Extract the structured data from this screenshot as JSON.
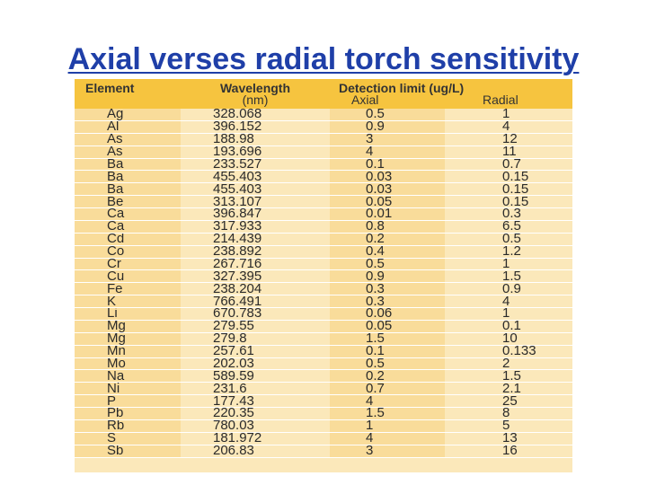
{
  "title": "Axial verses radial torch sensitivity",
  "table": {
    "headers": {
      "element": "Element",
      "wavelength": "Wavelength",
      "wavelength_unit": "(nm)",
      "detection_limit": "Detection limit (ug/L)",
      "axial": "Axial",
      "radial": "Radial"
    },
    "rows": [
      {
        "element": "Ag",
        "wavelength": "328.068",
        "axial": "0.5",
        "radial": "1"
      },
      {
        "element": "Al",
        "wavelength": "396.152",
        "axial": "0.9",
        "radial": "4"
      },
      {
        "element": "As",
        "wavelength": "188.98",
        "axial": "3",
        "radial": "12"
      },
      {
        "element": "As",
        "wavelength": "193.696",
        "axial": "4",
        "radial": "11"
      },
      {
        "element": "Ba",
        "wavelength": "233.527",
        "axial": "0.1",
        "radial": "0.7"
      },
      {
        "element": "Ba",
        "wavelength": "455.403",
        "axial": "0.03",
        "radial": "0.15"
      },
      {
        "element": "Ba",
        "wavelength": "455.403",
        "axial": "0.03",
        "radial": "0.15"
      },
      {
        "element": "Be",
        "wavelength": "313.107",
        "axial": "0.05",
        "radial": "0.15"
      },
      {
        "element": "Ca",
        "wavelength": "396.847",
        "axial": "0.01",
        "radial": "0.3"
      },
      {
        "element": "Ca",
        "wavelength": "317.933",
        "axial": "0.8",
        "radial": "6.5"
      },
      {
        "element": "Cd",
        "wavelength": "214.439",
        "axial": "0.2",
        "radial": "0.5"
      },
      {
        "element": "Co",
        "wavelength": "238.892",
        "axial": "0.4",
        "radial": "1.2"
      },
      {
        "element": "Cr",
        "wavelength": "267.716",
        "axial": "0.5",
        "radial": "1"
      },
      {
        "element": "Cu",
        "wavelength": "327.395",
        "axial": "0.9",
        "radial": "1.5"
      },
      {
        "element": "Fe",
        "wavelength": "238.204",
        "axial": "0.3",
        "radial": "0.9"
      },
      {
        "element": "K",
        "wavelength": "766.491",
        "axial": "0.3",
        "radial": "4"
      },
      {
        "element": "Li",
        "wavelength": "670.783",
        "axial": "0.06",
        "radial": "1"
      },
      {
        "element": "Mg",
        "wavelength": "279.55",
        "axial": "0.05",
        "radial": "0.1"
      },
      {
        "element": "Mg",
        "wavelength": "279.8",
        "axial": "1.5",
        "radial": "10"
      },
      {
        "element": "Mn",
        "wavelength": "257.61",
        "axial": "0.1",
        "radial": "0.133"
      },
      {
        "element": "Mo",
        "wavelength": "202.03",
        "axial": "0.5",
        "radial": "2"
      },
      {
        "element": "Na",
        "wavelength": "589.59",
        "axial": "0.2",
        "radial": "1.5"
      },
      {
        "element": "Ni",
        "wavelength": "231.6",
        "axial": "0.7",
        "radial": "2.1"
      },
      {
        "element": "P",
        "wavelength": "177.43",
        "axial": "4",
        "radial": "25"
      },
      {
        "element": "Pb",
        "wavelength": "220.35",
        "axial": "1.5",
        "radial": "8"
      },
      {
        "element": "Rb",
        "wavelength": "780.03",
        "axial": "1",
        "radial": "5"
      },
      {
        "element": "S",
        "wavelength": "181.972",
        "axial": "4",
        "radial": "13"
      },
      {
        "element": "Sb",
        "wavelength": "206.83",
        "axial": "3",
        "radial": "16"
      }
    ]
  },
  "colors": {
    "title": "#1f3fa8",
    "header_bg": "#f6c43f",
    "column_dark": "#f9dc9a",
    "column_light": "#fbe8ba"
  }
}
